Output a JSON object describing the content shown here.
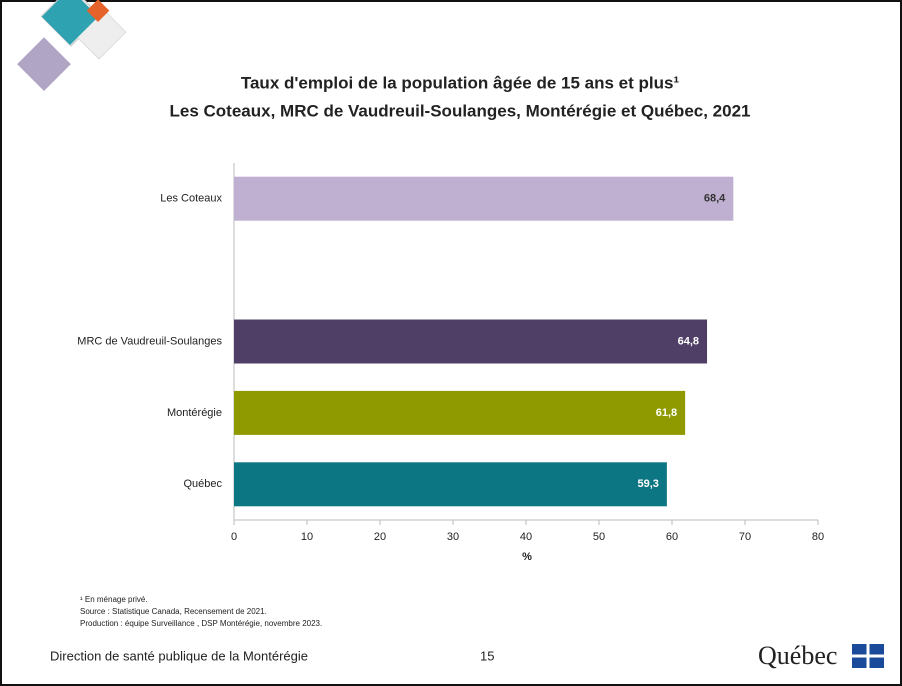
{
  "chart_data": {
    "type": "bar",
    "orientation": "horizontal",
    "title": [
      "Taux d'emploi de la population âgée de 15 ans et plus¹",
      "Les Coteaux, MRC de Vaudreuil-Soulanges, Montérégie et Québec, 2021"
    ],
    "categories": [
      "Les Coteaux",
      null,
      "MRC de Vaudreuil-Soulanges",
      "Montérégie",
      "Québec"
    ],
    "values": [
      68.4,
      null,
      64.8,
      61.8,
      59.3
    ],
    "value_labels": [
      "68,4",
      null,
      "64,8",
      "61,8",
      "59,3"
    ],
    "colors": [
      "#bfb0d2",
      null,
      "#4f3f66",
      "#8f9a00",
      "#0d7683"
    ],
    "x_label": "%",
    "xlim": [
      0,
      80
    ],
    "xticks": [
      0,
      10,
      20,
      30,
      40,
      50,
      60,
      70,
      80
    ],
    "grid": false
  },
  "slide": {
    "footnotes": [
      "¹ En ménage privé.",
      "Source : Statistique Canada, Recensement de 2021.",
      "Production : équipe Surveillance , DSP Montérégie, novembre 2023."
    ],
    "footer": "Direction de santé publique de la Montérégie",
    "page_number": 15,
    "logo": "Québec"
  }
}
